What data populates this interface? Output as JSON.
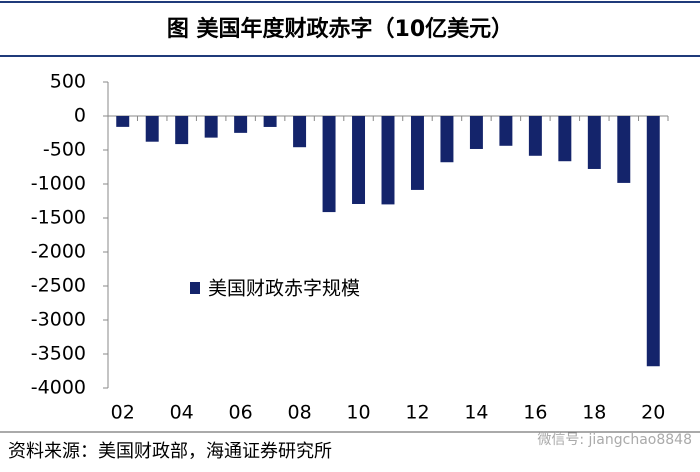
{
  "chart_data": {
    "type": "bar",
    "title": "图  美国年度财政赤字（10亿美元）",
    "categories": [
      "02",
      null,
      "04",
      null,
      "06",
      null,
      "08",
      null,
      "10",
      null,
      "12",
      null,
      "14",
      null,
      "16",
      null,
      "18",
      null,
      "20"
    ],
    "series": [
      {
        "name": "美国财政赤字规模",
        "color": "#14246b",
        "values": [
          -160,
          -378,
          -413,
          -318,
          -248,
          -161,
          -459,
          -1413,
          -1294,
          -1300,
          -1087,
          -680,
          -485,
          -438,
          -585,
          -665,
          -779,
          -984,
          -3680
        ]
      }
    ],
    "ylim": [
      -4000,
      500
    ],
    "yticks": [
      500,
      0,
      -500,
      -1000,
      -1500,
      -2000,
      -2500,
      -3000,
      -3500,
      -4000
    ],
    "source": "资料来源：美国财政部，海通证券研究所",
    "watermark": "微信号: jiangchao8848"
  }
}
